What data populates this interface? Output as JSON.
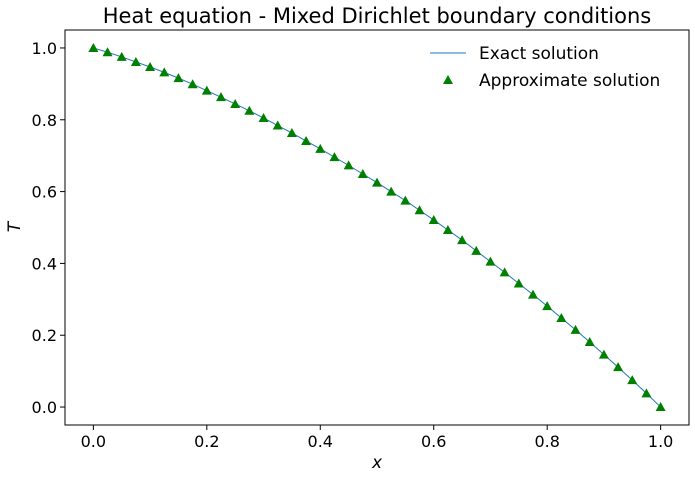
{
  "chart_data": {
    "type": "line",
    "title": "Heat equation - Mixed Dirichlet boundary conditions",
    "xlabel": "x",
    "ylabel": "T",
    "xlim": [
      -0.05,
      1.05
    ],
    "ylim": [
      -0.05,
      1.05
    ],
    "xticks": [
      0.0,
      0.2,
      0.4,
      0.6,
      0.8,
      1.0
    ],
    "yticks": [
      0.0,
      0.2,
      0.4,
      0.6,
      0.8,
      1.0
    ],
    "xtick_labels": [
      "0.0",
      "0.2",
      "0.4",
      "0.6",
      "0.8",
      "1.0"
    ],
    "ytick_labels": [
      "0.0",
      "0.2",
      "0.4",
      "0.6",
      "0.8",
      "1.0"
    ],
    "grid": false,
    "legend_position": "top-right",
    "series": [
      {
        "name": "Exact solution",
        "style": "line",
        "color": "#1f77b4",
        "x": [
          0.0,
          0.025,
          0.05,
          0.075,
          0.1,
          0.125,
          0.15,
          0.175,
          0.2,
          0.225,
          0.25,
          0.275,
          0.3,
          0.325,
          0.35,
          0.375,
          0.4,
          0.425,
          0.45,
          0.475,
          0.5,
          0.525,
          0.55,
          0.575,
          0.6,
          0.625,
          0.65,
          0.675,
          0.7,
          0.725,
          0.75,
          0.775,
          0.8,
          0.825,
          0.85,
          0.875,
          0.9,
          0.925,
          0.95,
          0.975,
          1.0
        ],
        "y": [
          1.0,
          0.988,
          0.975,
          0.961,
          0.947,
          0.932,
          0.916,
          0.899,
          0.881,
          0.863,
          0.844,
          0.825,
          0.805,
          0.784,
          0.763,
          0.741,
          0.719,
          0.696,
          0.673,
          0.649,
          0.625,
          0.6,
          0.575,
          0.548,
          0.521,
          0.493,
          0.465,
          0.435,
          0.405,
          0.375,
          0.344,
          0.313,
          0.281,
          0.248,
          0.215,
          0.181,
          0.146,
          0.111,
          0.075,
          0.038,
          0.0
        ]
      },
      {
        "name": "Approximate solution",
        "style": "marker",
        "marker": "triangle",
        "color": "#008000",
        "x": [
          0.0,
          0.025,
          0.05,
          0.075,
          0.1,
          0.125,
          0.15,
          0.175,
          0.2,
          0.225,
          0.25,
          0.275,
          0.3,
          0.325,
          0.35,
          0.375,
          0.4,
          0.425,
          0.45,
          0.475,
          0.5,
          0.525,
          0.55,
          0.575,
          0.6,
          0.625,
          0.65,
          0.675,
          0.7,
          0.725,
          0.75,
          0.775,
          0.8,
          0.825,
          0.85,
          0.875,
          0.9,
          0.925,
          0.95,
          0.975,
          1.0
        ],
        "y": [
          1.0,
          0.988,
          0.975,
          0.961,
          0.947,
          0.932,
          0.916,
          0.899,
          0.881,
          0.863,
          0.844,
          0.825,
          0.805,
          0.784,
          0.763,
          0.741,
          0.719,
          0.696,
          0.673,
          0.649,
          0.625,
          0.6,
          0.575,
          0.548,
          0.521,
          0.493,
          0.465,
          0.435,
          0.405,
          0.375,
          0.344,
          0.313,
          0.281,
          0.248,
          0.215,
          0.181,
          0.146,
          0.111,
          0.075,
          0.038,
          0.0
        ]
      }
    ]
  }
}
